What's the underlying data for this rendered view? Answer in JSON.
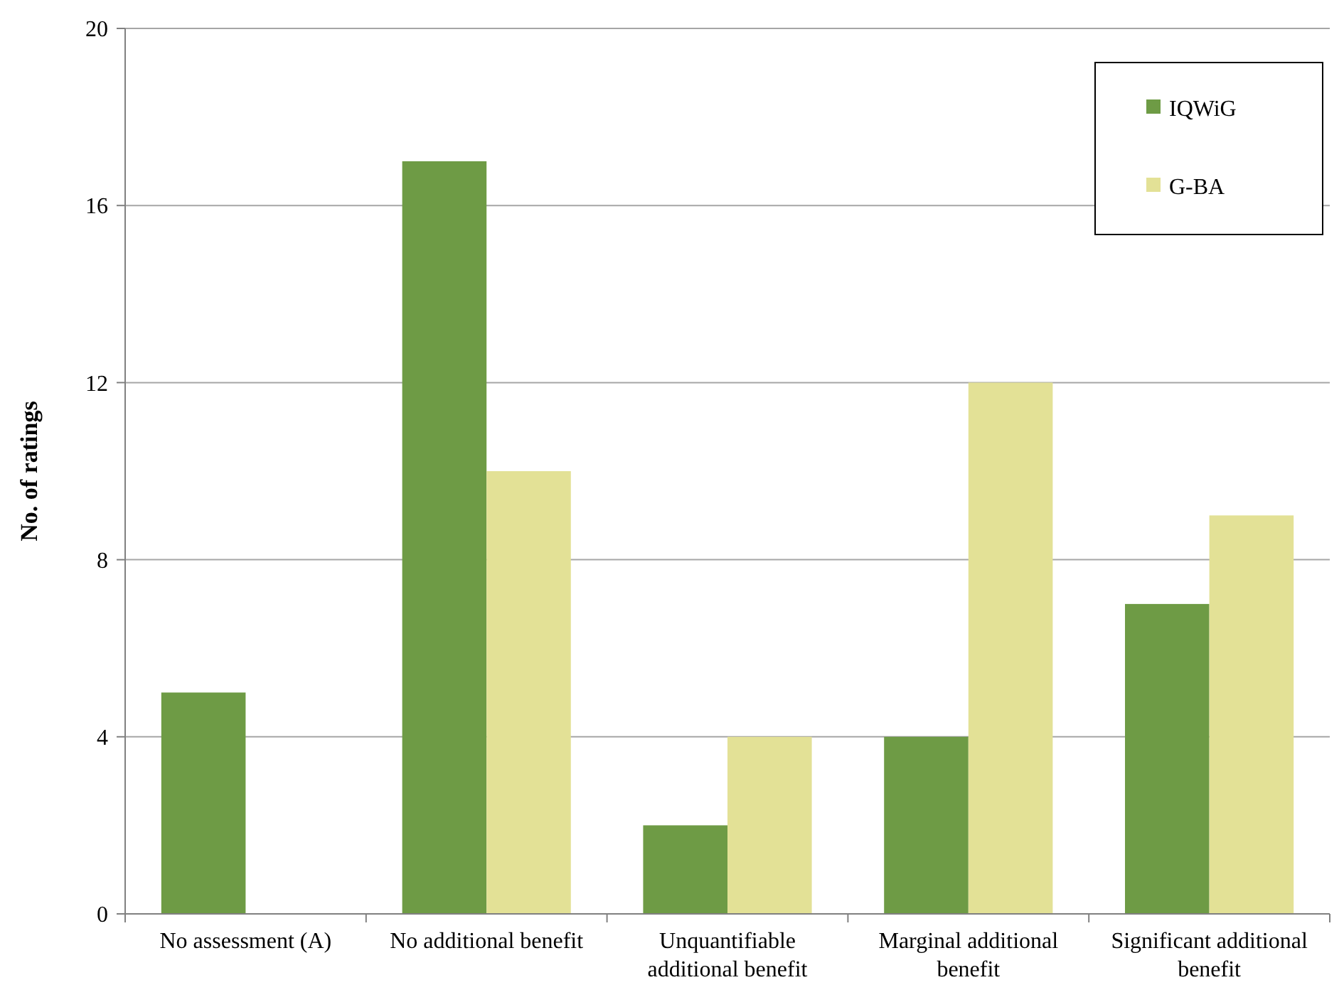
{
  "chart_data": {
    "type": "bar",
    "ylabel": "No. of ratings",
    "categories": [
      "No assessment (A)",
      "No additional benefit",
      "Unquantifiable additional benefit",
      "Marginal additional benefit",
      "Significant additional benefit"
    ],
    "series": [
      {
        "name": "IQWiG",
        "color": "#6e9b45",
        "values": [
          5,
          17,
          2,
          4,
          7
        ]
      },
      {
        "name": "G-BA",
        "color": "#e3e196",
        "values": [
          0,
          10,
          4,
          12,
          9
        ]
      }
    ],
    "ylim": [
      0,
      20
    ],
    "yticks": [
      0,
      4,
      8,
      12,
      16,
      20
    ],
    "grid": "y",
    "legend": "top right"
  }
}
